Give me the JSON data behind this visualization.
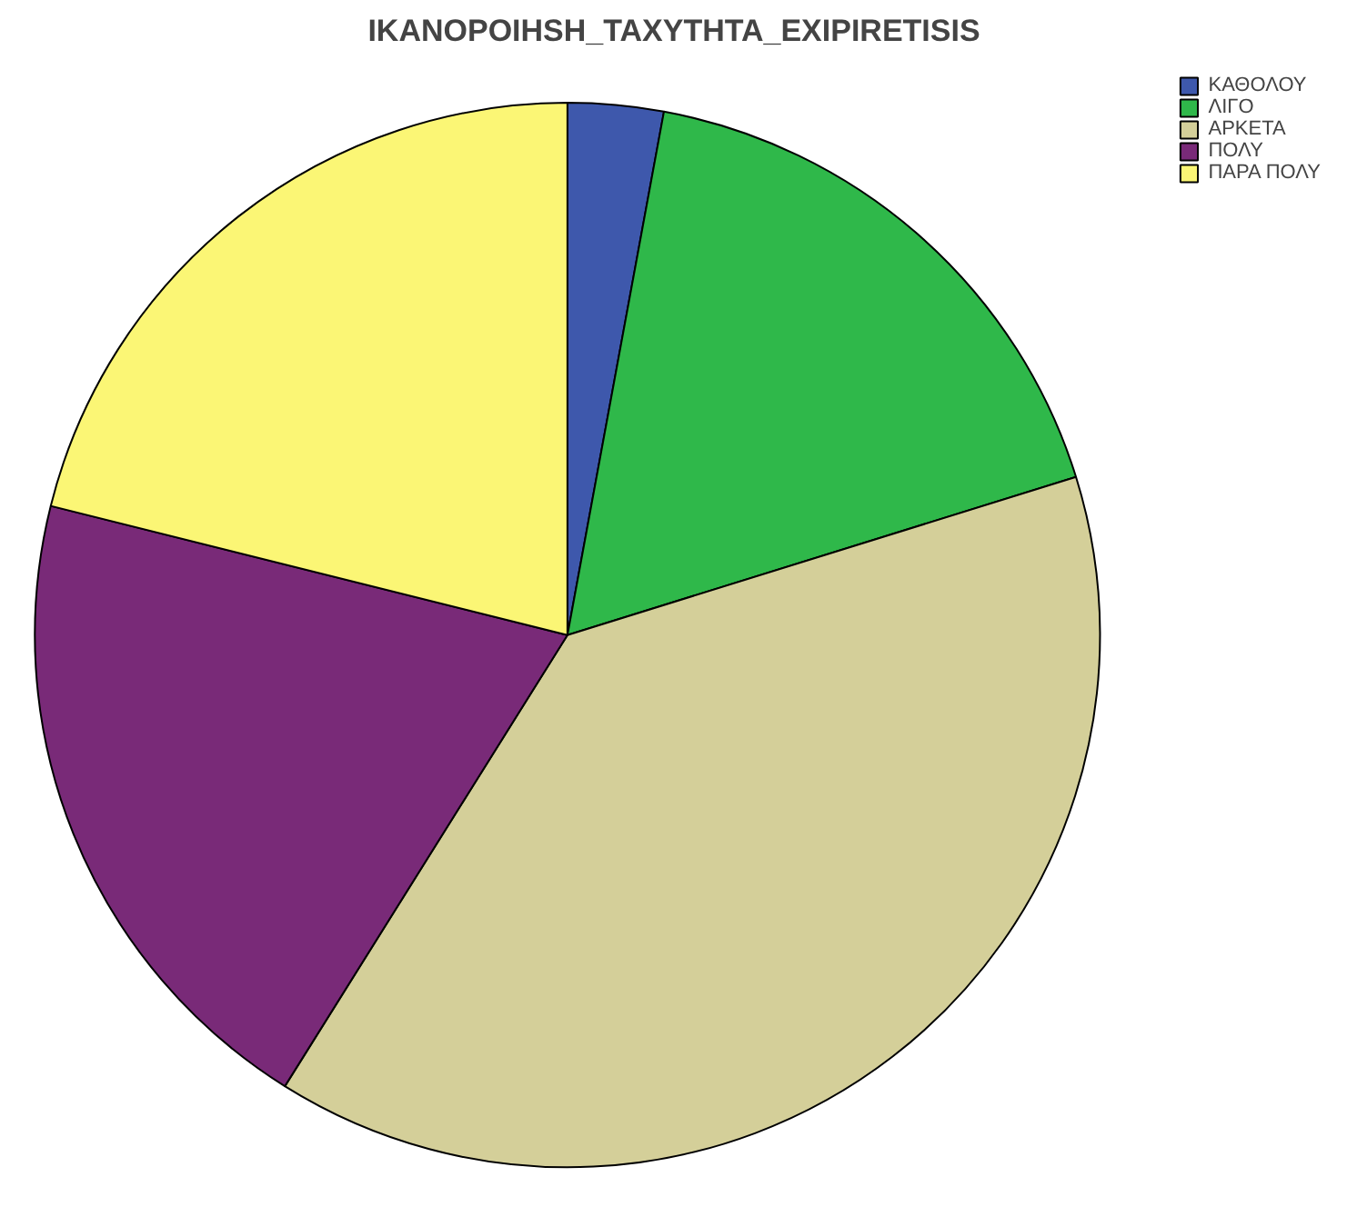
{
  "chart_data": {
    "type": "pie",
    "title": "IKANOPOIHSH_TAXYTHTA_EXIPIRETISIS",
    "categories": [
      "ΚΑΘΟΛΟΥ",
      "ΛΙΓΟ",
      "ΑΡΚΕΤΑ",
      "ΠΟΛΥ",
      "ΠΑΡΑ ΠΟΛΥ"
    ],
    "values": [
      2.9,
      17.3,
      38.7,
      20.0,
      21.1
    ],
    "colors": [
      "#3e58ac",
      "#2fb84a",
      "#d4cf99",
      "#792a78",
      "#fbf675"
    ],
    "legend": "top right"
  }
}
